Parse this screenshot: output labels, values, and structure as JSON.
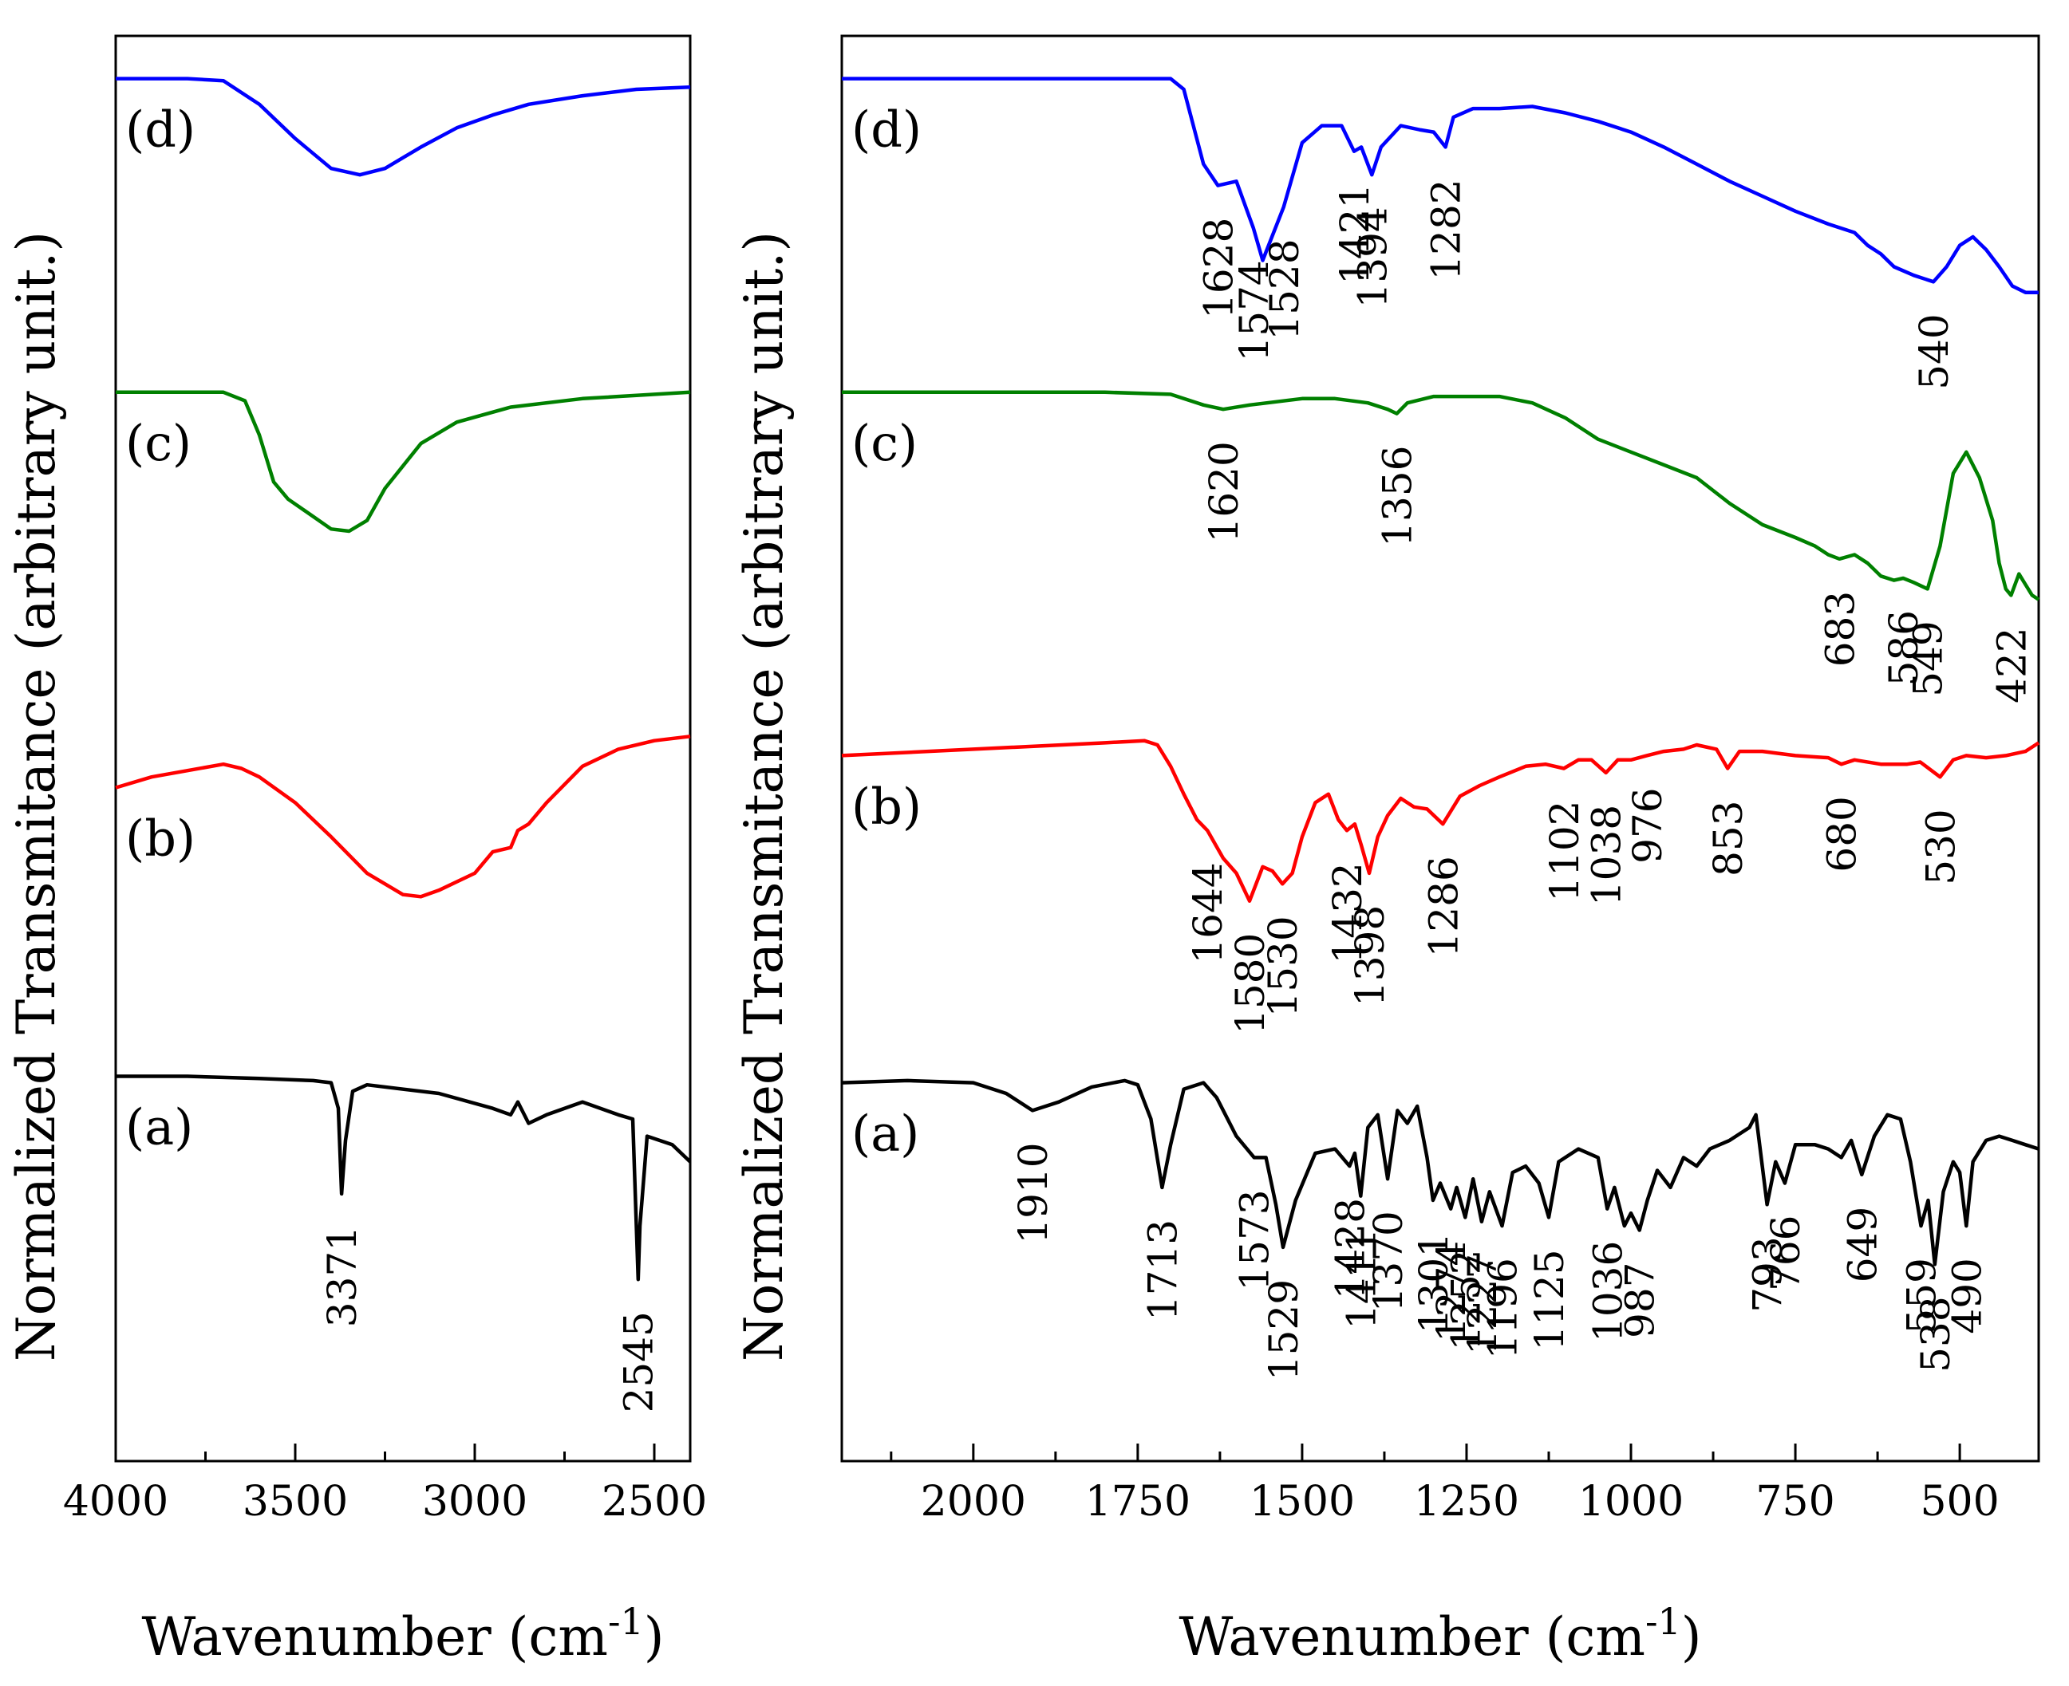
{
  "colors": {
    "a": "#000000",
    "b": "#ff0000",
    "c": "#008000",
    "d": "#0000ff",
    "axis": "#000000"
  },
  "chart_data": [
    {
      "type": "line",
      "panel": "left",
      "xlabel": "Wavenumber (cm",
      "xlabel_sup": "-1",
      "xlabel_close": ")",
      "ylabel": "Normalized Transmitance  (arbitrary unit.)",
      "xlim": [
        4000,
        2400
      ],
      "xticks": [
        4000,
        3500,
        3000,
        2500
      ],
      "xtick_labels": [
        "4000",
        "3500",
        "3000",
        "2500"
      ],
      "grid": false,
      "series": [
        {
          "name": "(d)",
          "color_key": "d",
          "level": 0.895,
          "label_pos": "left",
          "x": [
            4000,
            3800,
            3700,
            3600,
            3500,
            3400,
            3320,
            3250,
            3150,
            3050,
            2950,
            2850,
            2700,
            2550,
            2400
          ],
          "y": [
            1.0,
            1.0,
            0.99,
            0.88,
            0.72,
            0.58,
            0.55,
            0.58,
            0.68,
            0.77,
            0.83,
            0.88,
            0.92,
            0.95,
            0.96
          ]
        },
        {
          "name": "(c)",
          "color_key": "c",
          "level": 0.675,
          "label_pos": "left",
          "x": [
            4000,
            3700,
            3640,
            3600,
            3560,
            3520,
            3460,
            3400,
            3350,
            3300,
            3250,
            3150,
            3050,
            2900,
            2700,
            2400
          ],
          "y": [
            1.0,
            1.0,
            0.96,
            0.8,
            0.58,
            0.5,
            0.43,
            0.36,
            0.35,
            0.4,
            0.55,
            0.76,
            0.86,
            0.93,
            0.97,
            1.0
          ]
        },
        {
          "name": "(b)",
          "color_key": "b",
          "level": 0.435,
          "label_pos": "left",
          "x": [
            4000,
            3900,
            3800,
            3700,
            3650,
            3600,
            3500,
            3400,
            3300,
            3200,
            3150,
            3100,
            3000,
            2950,
            2900,
            2880,
            2850,
            2800,
            2700,
            2600,
            2500,
            2400
          ],
          "y": [
            0.75,
            0.8,
            0.83,
            0.86,
            0.84,
            0.8,
            0.68,
            0.52,
            0.35,
            0.25,
            0.24,
            0.27,
            0.35,
            0.45,
            0.47,
            0.55,
            0.58,
            0.68,
            0.85,
            0.93,
            0.97,
            0.99
          ]
        },
        {
          "name": "(a)",
          "color_key": "a",
          "level": 0.195,
          "label_pos": "left",
          "x": [
            4000,
            3800,
            3600,
            3450,
            3400,
            3380,
            3371,
            3360,
            3340,
            3300,
            3100,
            2950,
            2900,
            2880,
            2850,
            2800,
            2700,
            2600,
            2560,
            2550,
            2545,
            2540,
            2520,
            2450,
            2400
          ],
          "y": [
            1.0,
            1.0,
            0.99,
            0.98,
            0.97,
            0.85,
            0.45,
            0.7,
            0.93,
            0.96,
            0.92,
            0.85,
            0.82,
            0.88,
            0.78,
            0.82,
            0.88,
            0.82,
            0.8,
            0.3,
            0.05,
            0.3,
            0.72,
            0.68,
            0.6
          ]
        }
      ],
      "annotations": [
        {
          "text": "3371",
          "x": 3371,
          "series": "(a)"
        },
        {
          "text": "2545",
          "x": 2545,
          "series": "(a)"
        }
      ]
    },
    {
      "type": "line",
      "panel": "right",
      "xlabel": "Wavenumber (cm",
      "xlabel_sup": "-1",
      "xlabel_close": ")",
      "ylabel": "Normalized Transmitance  (arbitrary unit.)",
      "xlim": [
        2200,
        380
      ],
      "xticks": [
        2000,
        1750,
        1500,
        1250,
        1000,
        750,
        500
      ],
      "xtick_labels": [
        "2000",
        "1750",
        "1500",
        "1250",
        "1000",
        "750",
        "500"
      ],
      "grid": false,
      "series": [
        {
          "name": "(d)",
          "color_key": "d",
          "level": 0.895,
          "label_pos": "left",
          "x": [
            2200,
            1900,
            1700,
            1680,
            1650,
            1628,
            1600,
            1574,
            1560,
            1528,
            1500,
            1470,
            1440,
            1421,
            1410,
            1394,
            1380,
            1350,
            1320,
            1300,
            1282,
            1270,
            1240,
            1200,
            1150,
            1100,
            1050,
            1000,
            950,
            900,
            850,
            800,
            750,
            700,
            660,
            640,
            620,
            600,
            570,
            540,
            520,
            500,
            480,
            460,
            440,
            420,
            400,
            380
          ],
          "y": [
            1.0,
            1.0,
            1.0,
            0.95,
            0.6,
            0.5,
            0.52,
            0.3,
            0.15,
            0.4,
            0.7,
            0.78,
            0.78,
            0.66,
            0.68,
            0.55,
            0.68,
            0.78,
            0.76,
            0.75,
            0.68,
            0.82,
            0.86,
            0.86,
            0.87,
            0.84,
            0.8,
            0.75,
            0.68,
            0.6,
            0.52,
            0.45,
            0.38,
            0.32,
            0.28,
            0.22,
            0.18,
            0.12,
            0.08,
            0.05,
            0.12,
            0.22,
            0.26,
            0.2,
            0.12,
            0.03,
            0.0,
            0.0
          ]
        },
        {
          "name": "(c)",
          "color_key": "c",
          "level": 0.675,
          "label_pos": "left",
          "x": [
            2200,
            1800,
            1700,
            1650,
            1620,
            1580,
            1500,
            1450,
            1400,
            1370,
            1356,
            1340,
            1300,
            1250,
            1200,
            1150,
            1100,
            1050,
            1000,
            950,
            900,
            850,
            800,
            750,
            720,
            700,
            683,
            660,
            640,
            620,
            600,
            586,
            570,
            549,
            530,
            510,
            490,
            470,
            450,
            440,
            430,
            422,
            410,
            400,
            390,
            380
          ],
          "y": [
            1.0,
            1.0,
            0.99,
            0.94,
            0.92,
            0.94,
            0.97,
            0.97,
            0.95,
            0.92,
            0.9,
            0.95,
            0.98,
            0.98,
            0.98,
            0.95,
            0.88,
            0.78,
            0.72,
            0.66,
            0.6,
            0.48,
            0.38,
            0.32,
            0.28,
            0.24,
            0.22,
            0.24,
            0.2,
            0.14,
            0.12,
            0.13,
            0.11,
            0.08,
            0.28,
            0.62,
            0.72,
            0.6,
            0.4,
            0.2,
            0.08,
            0.05,
            0.15,
            0.1,
            0.05,
            0.03
          ]
        },
        {
          "name": "(b)",
          "color_key": "b",
          "level": 0.435,
          "label_pos": "left",
          "x": [
            2200,
            2000,
            1800,
            1740,
            1720,
            1700,
            1680,
            1660,
            1644,
            1620,
            1600,
            1580,
            1560,
            1545,
            1530,
            1515,
            1500,
            1480,
            1460,
            1445,
            1432,
            1420,
            1410,
            1398,
            1385,
            1370,
            1350,
            1330,
            1310,
            1286,
            1260,
            1230,
            1200,
            1160,
            1130,
            1102,
            1080,
            1060,
            1038,
            1020,
            1000,
            976,
            950,
            920,
            900,
            870,
            853,
            835,
            800,
            750,
            700,
            680,
            660,
            620,
            580,
            560,
            530,
            510,
            490,
            460,
            430,
            400,
            380
          ],
          "y": [
            0.9,
            0.93,
            0.96,
            0.97,
            0.95,
            0.85,
            0.72,
            0.6,
            0.55,
            0.42,
            0.35,
            0.22,
            0.38,
            0.36,
            0.3,
            0.35,
            0.52,
            0.68,
            0.72,
            0.6,
            0.55,
            0.58,
            0.48,
            0.35,
            0.52,
            0.62,
            0.7,
            0.66,
            0.65,
            0.58,
            0.71,
            0.76,
            0.8,
            0.85,
            0.86,
            0.84,
            0.88,
            0.88,
            0.82,
            0.88,
            0.88,
            0.9,
            0.92,
            0.93,
            0.95,
            0.93,
            0.84,
            0.92,
            0.92,
            0.9,
            0.89,
            0.86,
            0.88,
            0.86,
            0.86,
            0.87,
            0.8,
            0.88,
            0.9,
            0.89,
            0.9,
            0.92,
            0.96
          ]
        },
        {
          "name": "(a)",
          "color_key": "a",
          "level": 0.195,
          "label_pos": "left",
          "x": [
            2200,
            2100,
            2000,
            1950,
            1910,
            1870,
            1820,
            1770,
            1750,
            1730,
            1713,
            1700,
            1680,
            1650,
            1630,
            1600,
            1573,
            1555,
            1540,
            1529,
            1510,
            1480,
            1450,
            1428,
            1420,
            1411,
            1400,
            1385,
            1370,
            1355,
            1340,
            1325,
            1310,
            1301,
            1290,
            1274,
            1265,
            1252,
            1240,
            1227,
            1215,
            1196,
            1180,
            1160,
            1140,
            1125,
            1110,
            1080,
            1050,
            1036,
            1025,
            1010,
            1000,
            987,
            975,
            960,
            940,
            920,
            900,
            880,
            850,
            820,
            810,
            793,
            780,
            766,
            750,
            720,
            700,
            680,
            665,
            649,
            630,
            610,
            590,
            575,
            559,
            548,
            538,
            525,
            510,
            500,
            490,
            480,
            460,
            440,
            420,
            400,
            380
          ],
          "y": [
            0.97,
            0.98,
            0.97,
            0.92,
            0.84,
            0.88,
            0.95,
            0.98,
            0.96,
            0.8,
            0.48,
            0.68,
            0.94,
            0.97,
            0.9,
            0.72,
            0.62,
            0.62,
            0.4,
            0.2,
            0.42,
            0.64,
            0.66,
            0.58,
            0.64,
            0.44,
            0.76,
            0.82,
            0.52,
            0.84,
            0.78,
            0.86,
            0.62,
            0.42,
            0.5,
            0.38,
            0.48,
            0.34,
            0.52,
            0.32,
            0.46,
            0.3,
            0.55,
            0.58,
            0.5,
            0.34,
            0.6,
            0.66,
            0.62,
            0.38,
            0.48,
            0.3,
            0.36,
            0.28,
            0.42,
            0.56,
            0.48,
            0.62,
            0.58,
            0.66,
            0.7,
            0.76,
            0.82,
            0.4,
            0.6,
            0.5,
            0.68,
            0.68,
            0.66,
            0.62,
            0.7,
            0.54,
            0.72,
            0.82,
            0.8,
            0.6,
            0.3,
            0.42,
            0.12,
            0.46,
            0.6,
            0.55,
            0.3,
            0.6,
            0.7,
            0.72,
            0.7,
            0.68,
            0.66
          ]
        }
      ],
      "annotations": [
        {
          "text": "1628",
          "x": 1628,
          "series": "(d)"
        },
        {
          "text": "1574",
          "x": 1574,
          "series": "(d)"
        },
        {
          "text": "1528",
          "x": 1528,
          "series": "(d)"
        },
        {
          "text": "1421",
          "x": 1421,
          "series": "(d)"
        },
        {
          "text": "1394",
          "x": 1394,
          "series": "(d)"
        },
        {
          "text": "1282",
          "x": 1282,
          "series": "(d)"
        },
        {
          "text": "540",
          "x": 540,
          "series": "(d)"
        },
        {
          "text": "1620",
          "x": 1620,
          "series": "(c)"
        },
        {
          "text": "1356",
          "x": 1356,
          "series": "(c)"
        },
        {
          "text": "683",
          "x": 683,
          "series": "(c)"
        },
        {
          "text": "586",
          "x": 586,
          "series": "(c)"
        },
        {
          "text": "549",
          "x": 549,
          "series": "(c)"
        },
        {
          "text": "422",
          "x": 422,
          "series": "(c)"
        },
        {
          "text": "1644",
          "x": 1644,
          "series": "(b)"
        },
        {
          "text": "1580",
          "x": 1580,
          "series": "(b)"
        },
        {
          "text": "1530",
          "x": 1530,
          "series": "(b)"
        },
        {
          "text": "1432",
          "x": 1432,
          "series": "(b)"
        },
        {
          "text": "1398",
          "x": 1398,
          "series": "(b)"
        },
        {
          "text": "1286",
          "x": 1286,
          "series": "(b)"
        },
        {
          "text": "1102",
          "x": 1102,
          "series": "(b)"
        },
        {
          "text": "1038",
          "x": 1038,
          "series": "(b)"
        },
        {
          "text": "976",
          "x": 976,
          "series": "(b)"
        },
        {
          "text": "853",
          "x": 853,
          "series": "(b)"
        },
        {
          "text": "680",
          "x": 680,
          "series": "(b)"
        },
        {
          "text": "530",
          "x": 530,
          "series": "(b)"
        },
        {
          "text": "1910",
          "x": 1910,
          "series": "(a)"
        },
        {
          "text": "1713",
          "x": 1713,
          "series": "(a)"
        },
        {
          "text": "1573",
          "x": 1573,
          "series": "(a)"
        },
        {
          "text": "1529",
          "x": 1529,
          "series": "(a)"
        },
        {
          "text": "1428",
          "x": 1428,
          "series": "(a)"
        },
        {
          "text": "1411",
          "x": 1411,
          "series": "(a)"
        },
        {
          "text": "1370",
          "x": 1370,
          "series": "(a)"
        },
        {
          "text": "1301",
          "x": 1301,
          "series": "(a)"
        },
        {
          "text": "1274",
          "x": 1274,
          "series": "(a)"
        },
        {
          "text": "1252",
          "x": 1252,
          "series": "(a)"
        },
        {
          "text": "1227",
          "x": 1227,
          "series": "(a)"
        },
        {
          "text": "1196",
          "x": 1196,
          "series": "(a)"
        },
        {
          "text": "1125",
          "x": 1125,
          "series": "(a)"
        },
        {
          "text": "1036",
          "x": 1036,
          "series": "(a)"
        },
        {
          "text": "987",
          "x": 987,
          "series": "(a)"
        },
        {
          "text": "793",
          "x": 793,
          "series": "(a)"
        },
        {
          "text": "766",
          "x": 766,
          "series": "(a)"
        },
        {
          "text": "649",
          "x": 649,
          "series": "(a)"
        },
        {
          "text": "559",
          "x": 559,
          "series": "(a)"
        },
        {
          "text": "538",
          "x": 538,
          "series": "(a)"
        },
        {
          "text": "490",
          "x": 490,
          "series": "(a)"
        }
      ]
    }
  ]
}
